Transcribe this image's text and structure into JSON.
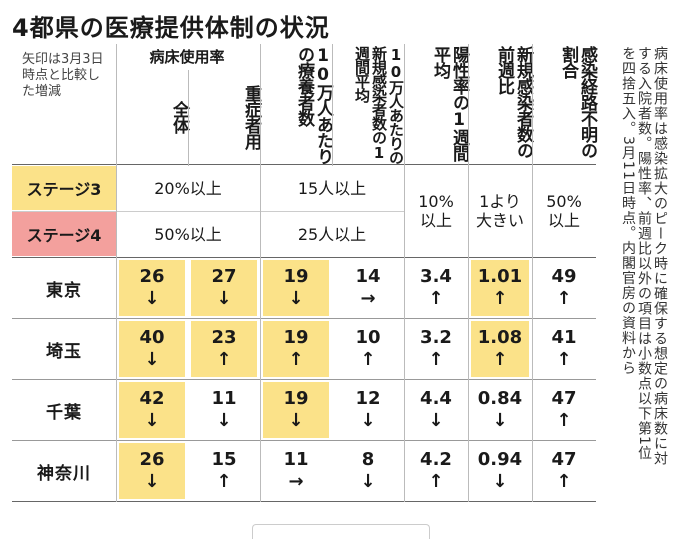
{
  "title": "4都県の医療提供体制の状況",
  "note_left": "矢印は3月3日時点と比較した増減",
  "group_header": "病床使用率",
  "columns": [
    "全体",
    "重症者用",
    "10万人あたりの療養者数",
    "10万人あたりの新規感染者数の1週間平均",
    "陽性率の1週間平均",
    "新規感染者数の前週比",
    "感染経路不明の割合"
  ],
  "stages": [
    {
      "label": "ステージ3",
      "bed": "20%以上",
      "patients": "15人以上"
    },
    {
      "label": "ステージ4",
      "bed": "50%以上",
      "patients": "25人以上"
    }
  ],
  "stage_shared": {
    "positive": "10%以上",
    "ratio": "1より大きい",
    "unknown": "50%以上"
  },
  "rows": [
    {
      "pref": "東京",
      "cells": [
        [
          "26",
          "↓"
        ],
        [
          "27",
          "↓"
        ],
        [
          "19",
          "↓"
        ],
        [
          "14",
          "→"
        ],
        [
          "3.4",
          "↑"
        ],
        [
          "1.01",
          "↑"
        ],
        [
          "49",
          "↑"
        ]
      ]
    },
    {
      "pref": "埼玉",
      "cells": [
        [
          "40",
          "↓"
        ],
        [
          "23",
          "↑"
        ],
        [
          "19",
          "↑"
        ],
        [
          "10",
          "↑"
        ],
        [
          "3.2",
          "↑"
        ],
        [
          "1.08",
          "↑"
        ],
        [
          "41",
          "↑"
        ]
      ]
    },
    {
      "pref": "千葉",
      "cells": [
        [
          "42",
          "↓"
        ],
        [
          "11",
          "↓"
        ],
        [
          "19",
          "↓"
        ],
        [
          "12",
          "↓"
        ],
        [
          "4.4",
          "↓"
        ],
        [
          "0.84",
          "↓"
        ],
        [
          "47",
          "↑"
        ]
      ]
    },
    {
      "pref": "神奈川",
      "cells": [
        [
          "26",
          "↓"
        ],
        [
          "15",
          "↑"
        ],
        [
          "11",
          "→"
        ],
        [
          "8",
          "↓"
        ],
        [
          "4.2",
          "↑"
        ],
        [
          "0.94",
          "↓"
        ],
        [
          "47",
          "↑"
        ]
      ]
    }
  ],
  "side_note": "病床使用率は感染拡大のピーク時に確保する想定の病床数に対する入院者数。陽性率、前週比以外の項目は小数点以下第1位を四捨五入。3月11日時点。内閣官房の資料から",
  "colors": {
    "highlight": "#fbe289",
    "stage3": "#fbe289",
    "stage4": "#f3a09d"
  }
}
